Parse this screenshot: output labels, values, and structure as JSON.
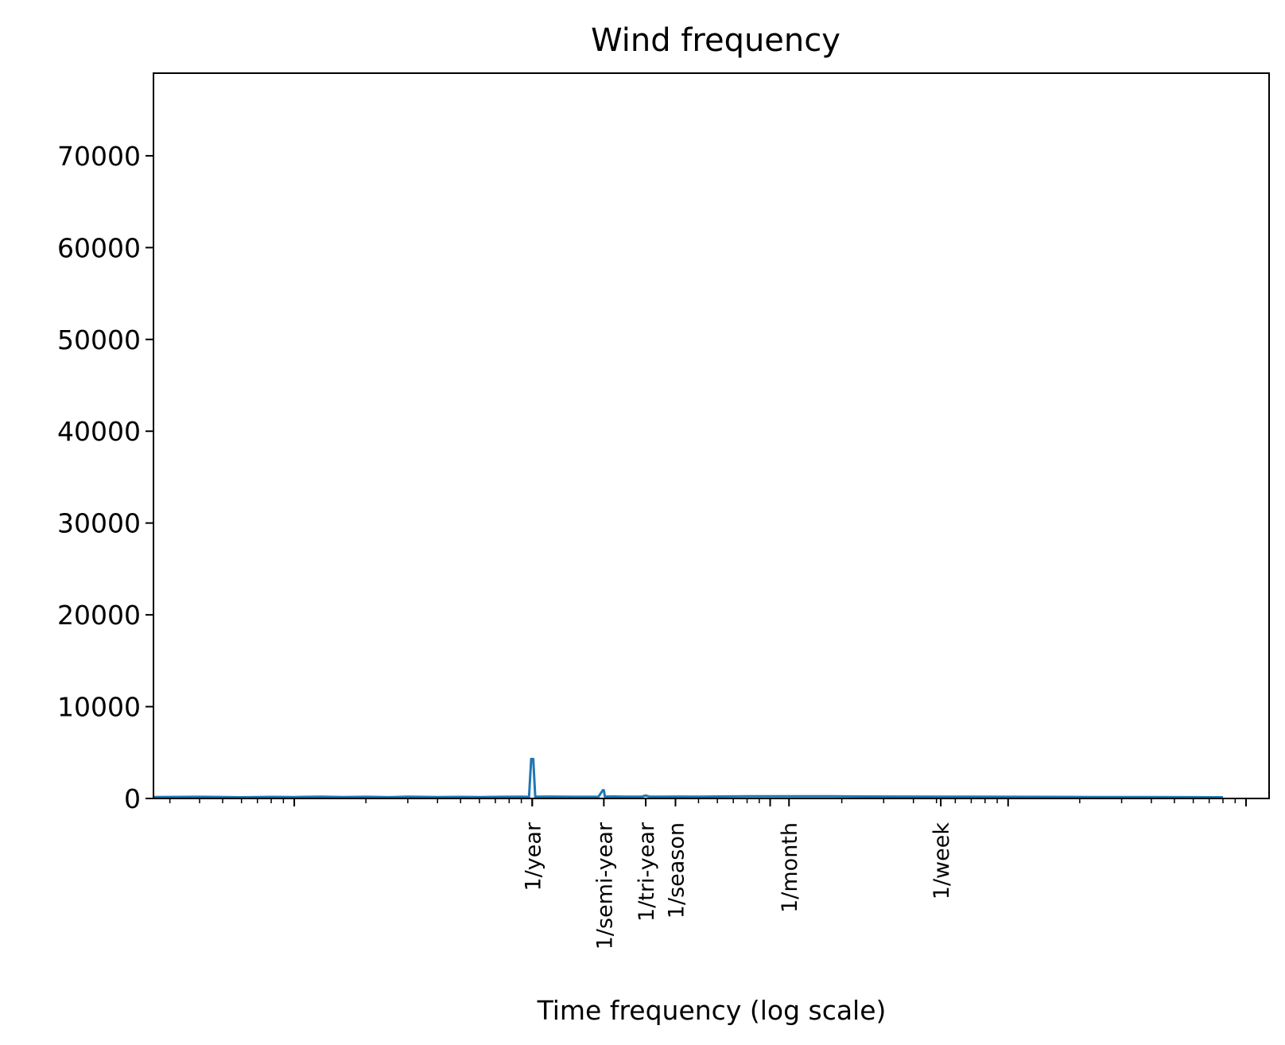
{
  "chart_data": {
    "type": "line",
    "title": "Wind frequency",
    "xlabel": "Time frequency (log scale)",
    "ylabel": "",
    "x_scale": "log",
    "x_unit": "cycles per year",
    "xlim": [
      0.0256,
      1250
    ],
    "ylim": [
      0,
      79000
    ],
    "grid": false,
    "legend": "none",
    "yticks": [
      0,
      10000,
      20000,
      30000,
      40000,
      50000,
      60000,
      70000
    ],
    "ytick_labels": [
      "0",
      "10000",
      "20000",
      "30000",
      "40000",
      "50000",
      "60000",
      "70000"
    ],
    "xticks": [
      {
        "value": 1,
        "label": "1/year"
      },
      {
        "value": 2,
        "label": "1/semi-year"
      },
      {
        "value": 3,
        "label": "1/tri-year"
      },
      {
        "value": 4,
        "label": "1/season"
      },
      {
        "value": 12,
        "label": "1/month"
      },
      {
        "value": 52.1429,
        "label": "1/week"
      }
    ],
    "series": [
      {
        "color": "#1f77b4",
        "x": [
          0.0256,
          0.04,
          0.06,
          0.08,
          0.1,
          0.13,
          0.16,
          0.2,
          0.25,
          0.3,
          0.4,
          0.5,
          0.6,
          0.75,
          0.9,
          0.97,
          0.99,
          1.0,
          1.01,
          1.03,
          1.2,
          1.5,
          1.9,
          1.98,
          2.0,
          2.02,
          2.2,
          2.5,
          2.9,
          3.0,
          3.1,
          3.5,
          4,
          5,
          6,
          8,
          10,
          12,
          14,
          18,
          25,
          35,
          52.14,
          70,
          100,
          150,
          250,
          400,
          600,
          800
        ],
        "y": [
          150,
          180,
          130,
          170,
          160,
          200,
          150,
          180,
          140,
          190,
          160,
          170,
          150,
          180,
          200,
          170,
          4300,
          4300,
          4300,
          200,
          210,
          180,
          200,
          900,
          900,
          200,
          220,
          190,
          210,
          320,
          210,
          200,
          210,
          190,
          220,
          230,
          240,
          230,
          240,
          230,
          220,
          210,
          200,
          190,
          180,
          170,
          160,
          150,
          140,
          130
        ]
      }
    ]
  }
}
